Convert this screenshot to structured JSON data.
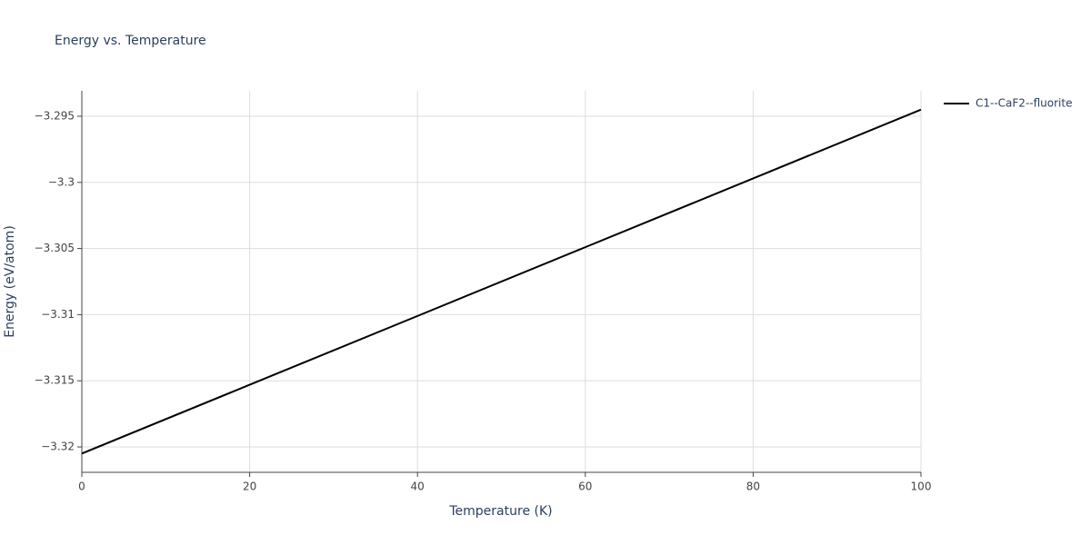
{
  "chart_data": {
    "type": "line",
    "title": "Energy vs. Temperature",
    "x_label": "Temperature (K)",
    "y_label": "Energy (eV/atom)",
    "x": [
      0,
      20,
      40,
      60,
      80,
      100
    ],
    "series": [
      {
        "name": "C1--CaF2--fluorite",
        "color": "#000000",
        "values": [
          -3.3205,
          -3.3153,
          -3.3101,
          -3.3049,
          -3.2997,
          -3.2945
        ]
      }
    ],
    "xlim": [
      0,
      100
    ],
    "xticks": [
      0,
      20,
      40,
      60,
      80,
      100
    ],
    "ylim": [
      -3.32192,
      -3.29308
    ],
    "yticks": [
      {
        "value": -3.32,
        "label": "−3.32"
      },
      {
        "value": -3.315,
        "label": "−3.315"
      },
      {
        "value": -3.31,
        "label": "−3.31"
      },
      {
        "value": -3.305,
        "label": "−3.305"
      },
      {
        "value": -3.3,
        "label": "−3.3"
      },
      {
        "value": -3.295,
        "label": "−3.295"
      }
    ],
    "grid": true,
    "legend": "right"
  }
}
